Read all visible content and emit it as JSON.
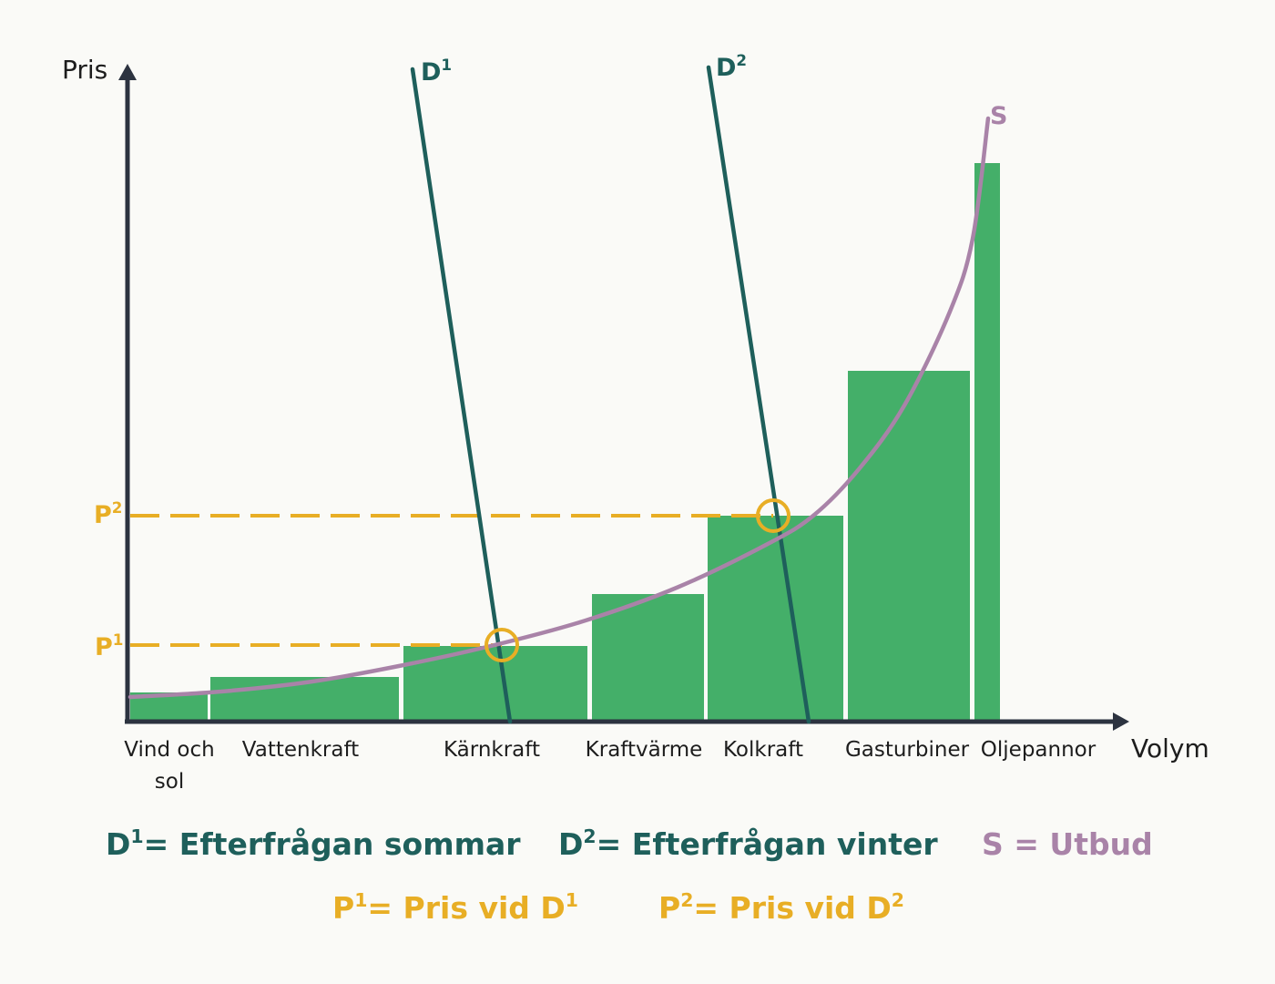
{
  "chart_data": {
    "type": "bar",
    "title": "",
    "xlabel": "Volym",
    "ylabel": "Pris",
    "categories": [
      "Vind och sol",
      "Vattenkraft",
      "Kärnkraft",
      "Kraftvärme",
      "Kolkraft",
      "Gasturbiner",
      "Oljepannor"
    ],
    "bars": [
      {
        "name": "Vind och sol",
        "x0": 0,
        "x1": 85,
        "value": 32
      },
      {
        "name": "Vattenkraft",
        "x0": 88,
        "x1": 295,
        "value": 49
      },
      {
        "name": "Kärnkraft",
        "x0": 300,
        "x1": 502,
        "value": 83
      },
      {
        "name": "Kraftvärme",
        "x0": 507,
        "x1": 630,
        "value": 140
      },
      {
        "name": "Kolkraft",
        "x0": 634,
        "x1": 783,
        "value": 226
      },
      {
        "name": "Gasturbiner",
        "x0": 788,
        "x1": 922,
        "value": 385
      },
      {
        "name": "Oljepannor",
        "x0": 927,
        "x1": 955,
        "value": 613
      }
    ],
    "xlim": [
      0,
      1100
    ],
    "ylim": [
      0,
      720
    ],
    "supply_curve": {
      "name": "S",
      "points": [
        [
          0,
          27
        ],
        [
          100,
          33
        ],
        [
          200,
          44
        ],
        [
          300,
          62
        ],
        [
          400,
          84
        ],
        [
          500,
          111
        ],
        [
          600,
          147
        ],
        [
          700,
          195
        ],
        [
          750,
          226
        ],
        [
          800,
          277
        ],
        [
          850,
          347
        ],
        [
          900,
          450
        ],
        [
          925,
          530
        ],
        [
          942,
          662
        ]
      ]
    },
    "demand_curves": [
      {
        "name": "D1",
        "points": [
          [
            310,
            716
          ],
          [
            417,
            0
          ]
        ]
      },
      {
        "name": "D2",
        "points": [
          [
            635,
            718
          ],
          [
            745,
            0
          ]
        ]
      }
    ],
    "equilibria": [
      {
        "name": "P1",
        "x": 408,
        "y": 84
      },
      {
        "name": "P2",
        "x": 706,
        "y": 226
      }
    ],
    "grid": false,
    "legend_position": "bottom"
  },
  "labels": {
    "y_axis": "Pris",
    "x_axis": "Volym",
    "categories": [
      {
        "lines": [
          "Vind och",
          "sol"
        ]
      },
      {
        "lines": [
          "Vattenkraft"
        ]
      },
      {
        "lines": [
          "Kärnkraft"
        ]
      },
      {
        "lines": [
          "Kraftvärme"
        ]
      },
      {
        "lines": [
          "Kolkraft"
        ]
      },
      {
        "lines": [
          "Gasturbiner"
        ]
      },
      {
        "lines": [
          "Oljepannor"
        ]
      }
    ],
    "d1": {
      "base": "D",
      "sup": "1"
    },
    "d2": {
      "base": "D",
      "sup": "2"
    },
    "s": "S",
    "p1": {
      "base": "P",
      "sup": "1"
    },
    "p2": {
      "base": "P",
      "sup": "2"
    }
  },
  "legend": {
    "d1": {
      "base": "D",
      "sup": "1",
      "text": "= Efterfrågan sommar"
    },
    "d2": {
      "base": "D",
      "sup": "2",
      "text": "= Efterfrågan vinter"
    },
    "s": {
      "text": "S = Utbud"
    },
    "p1": {
      "base": "P",
      "sup": "1",
      "text": "= Pris vid D",
      "tail_sup": "1"
    },
    "p2": {
      "base": "P",
      "sup": "2",
      "text": "= Pris vid D",
      "tail_sup": "2"
    }
  },
  "colors": {
    "bars": "#44af69",
    "demand": "#1e5f5b",
    "supply": "#a983a8",
    "price": "#e8ae25",
    "axis": "#2c3340",
    "text": "#1d1d1d"
  }
}
